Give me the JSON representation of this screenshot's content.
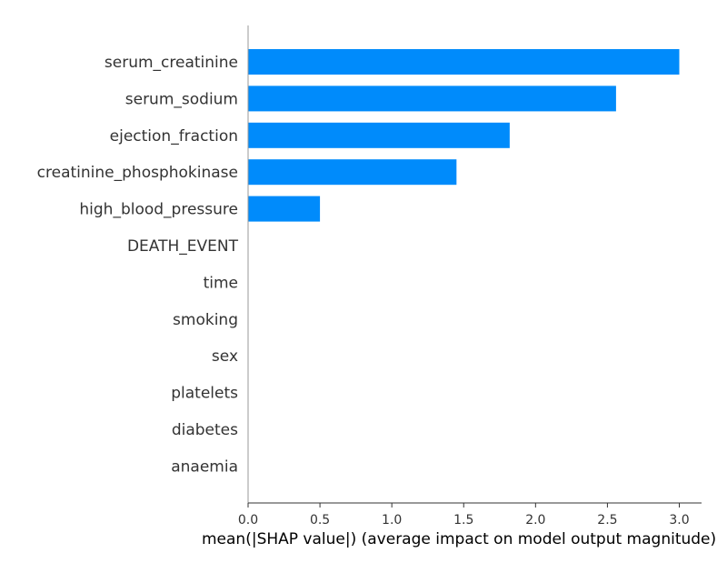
{
  "chart_data": {
    "type": "bar",
    "orientation": "horizontal",
    "title": "",
    "xlabel": "mean(|SHAP value|) (average impact on model output magnitude)",
    "ylabel": "",
    "categories": [
      "serum_creatinine",
      "serum_sodium",
      "ejection_fraction",
      "creatinine_phosphokinase",
      "high_blood_pressure",
      "DEATH_EVENT",
      "time",
      "smoking",
      "sex",
      "platelets",
      "diabetes",
      "anaemia"
    ],
    "values": [
      3.0,
      2.56,
      1.82,
      1.45,
      0.5,
      0,
      0,
      0,
      0,
      0,
      0,
      0
    ],
    "xticks": [
      "0.0",
      "0.5",
      "1.0",
      "1.5",
      "2.0",
      "2.5",
      "3.0"
    ],
    "xlim": [
      0,
      3.15
    ],
    "grid": false,
    "legend": "none",
    "bar_color": "#008bfb"
  }
}
